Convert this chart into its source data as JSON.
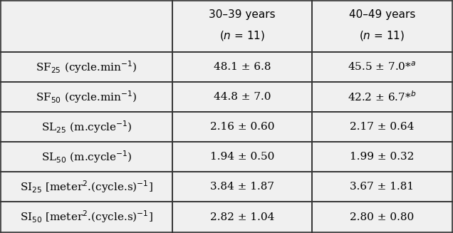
{
  "col_headers": [
    "",
    "30–39 years\n( η = 11)",
    "40–49 years\n( η = 11)"
  ],
  "rows": [
    {
      "label_parts": [
        {
          "text": "SF",
          "style": "normal"
        },
        {
          "text": "25",
          "style": "sub"
        },
        {
          "text": " (cycle.min",
          "style": "normal"
        },
        {
          "text": "−1",
          "style": "super"
        },
        {
          "text": ")",
          "style": "normal"
        }
      ],
      "col1": "48.1 ± 6.8",
      "col2_parts": [
        {
          "text": "45.5 ± 7.0*",
          "style": "normal"
        },
        {
          "text": "a",
          "style": "super"
        }
      ]
    },
    {
      "label_parts": [
        {
          "text": "SF",
          "style": "normal"
        },
        {
          "text": "50",
          "style": "sub"
        },
        {
          "text": " (cycle.min",
          "style": "normal"
        },
        {
          "text": "−1",
          "style": "super"
        },
        {
          "text": ")",
          "style": "normal"
        }
      ],
      "col1": "44.8 ± 7.0",
      "col2_parts": [
        {
          "text": "42.2 ± 6.7*",
          "style": "normal"
        },
        {
          "text": "b",
          "style": "super"
        }
      ]
    },
    {
      "label_parts": [
        {
          "text": "SL",
          "style": "normal"
        },
        {
          "text": "25",
          "style": "sub"
        },
        {
          "text": " (m.cycle",
          "style": "normal"
        },
        {
          "text": "−1",
          "style": "super"
        },
        {
          "text": ")",
          "style": "normal"
        }
      ],
      "col1": "2.16 ± 0.60",
      "col2_parts": [
        {
          "text": "2.17 ± 0.64",
          "style": "normal"
        }
      ]
    },
    {
      "label_parts": [
        {
          "text": "SL",
          "style": "normal"
        },
        {
          "text": "50",
          "style": "sub"
        },
        {
          "text": " (m.cycle",
          "style": "normal"
        },
        {
          "text": "−1",
          "style": "super"
        },
        {
          "text": ")",
          "style": "normal"
        }
      ],
      "col1": "1.94 ± 0.50",
      "col2_parts": [
        {
          "text": "1.99 ± 0.32",
          "style": "normal"
        }
      ]
    },
    {
      "label_parts": [
        {
          "text": "SI",
          "style": "normal"
        },
        {
          "text": "25",
          "style": "sub"
        },
        {
          "text": " [meter",
          "style": "normal"
        },
        {
          "text": "2",
          "style": "super"
        },
        {
          "text": ".(cycle.s)",
          "style": "normal"
        },
        {
          "text": "−1",
          "style": "super"
        },
        {
          "text": "]",
          "style": "normal"
        }
      ],
      "col1": "3.84 ± 1.87",
      "col2_parts": [
        {
          "text": "3.67 ± 1.81",
          "style": "normal"
        }
      ]
    },
    {
      "label_parts": [
        {
          "text": "SI",
          "style": "normal"
        },
        {
          "text": "50",
          "style": "sub"
        },
        {
          "text": " [meter",
          "style": "normal"
        },
        {
          "text": "2",
          "style": "super"
        },
        {
          "text": ".(cycle.s)",
          "style": "normal"
        },
        {
          "text": "−1",
          "style": "super"
        },
        {
          "text": "]",
          "style": "normal"
        }
      ],
      "col1": "2.82 ± 1.04",
      "col2_parts": [
        {
          "text": "2.80 ± 0.80",
          "style": "normal"
        }
      ]
    }
  ],
  "bg_color": "#f0f0f0",
  "border_color": "#333333",
  "font_size": 11,
  "header_font_size": 11
}
